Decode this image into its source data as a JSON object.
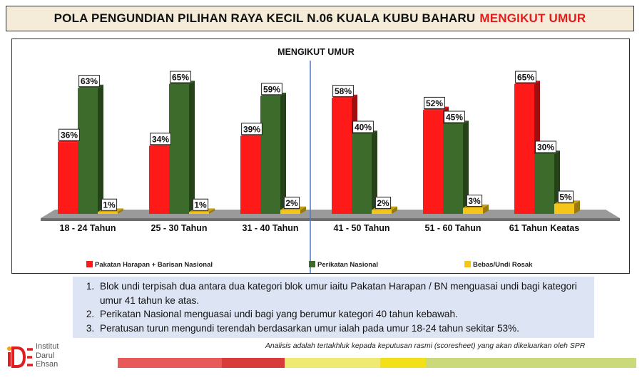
{
  "header": {
    "title_main": "POLA PENGUNDIAN  PILIHAN RAYA KECIL N.06 KUALA KUBU BAHARU",
    "title_accent": "MENGIKUT UMUR"
  },
  "chart_data": {
    "type": "bar",
    "title": "MENGIKUT UMUR",
    "categories": [
      "18 - 24 Tahun",
      "25 - 30 Tahun",
      "31 - 40 Tahun",
      "41 - 50 Tahun",
      "51 - 60 Tahun",
      "61 Tahun Keatas"
    ],
    "series": [
      {
        "name": "Pakatan Harapan + Barisan Nasional",
        "values": [
          36,
          34,
          39,
          58,
          52,
          65
        ],
        "labels": [
          "36%",
          "34%",
          "39%",
          "58%",
          "52%",
          "65%"
        ],
        "color": "#ff1a1a"
      },
      {
        "name": "Perikatan Nasional",
        "values": [
          63,
          65,
          59,
          40,
          45,
          30
        ],
        "labels": [
          "63%",
          "65%",
          "59%",
          "40%",
          "45%",
          "30%"
        ],
        "color": "#3d6b2c"
      },
      {
        "name": "Bebas/Undi Rosak",
        "values": [
          1,
          1,
          2,
          2,
          3,
          5
        ],
        "labels": [
          "1%",
          "1%",
          "2%",
          "2%",
          "3%",
          "5%"
        ],
        "color": "#f5c518"
      }
    ],
    "ylim": [
      0,
      70
    ],
    "grid": false,
    "legend_position": "bottom"
  },
  "notes": [
    "Blok undi terpisah dua antara dua kategori blok umur iaitu Pakatan Harapan / BN menguasai undi bagi kategori umur 41 tahun ke atas.",
    "Perikatan Nasional menguasai undi bagi yang berumur kategori 40 tahun  kebawah.",
    "Peratusan turun mengundi terendah berdasarkan umur ialah pada umur 18-24 tahun sekitar 53%."
  ],
  "footer": {
    "disclaimer": "Analisis adalah tertakhluk kepada keputusan rasmi (scoresheet) yang akan dikeluarkan oleh SPR"
  },
  "logo": {
    "line1": "Institut",
    "line2": "Darul",
    "line3": "Ehsan"
  }
}
